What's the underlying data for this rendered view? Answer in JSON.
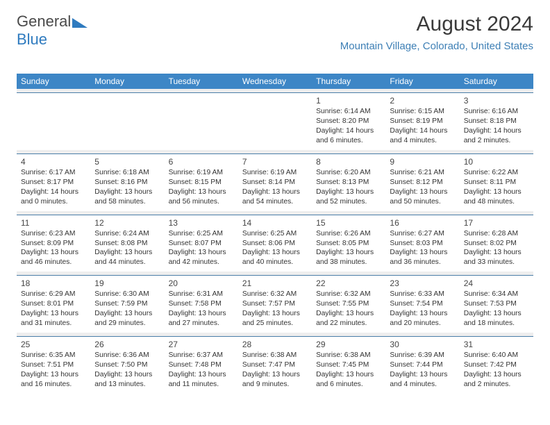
{
  "logo": {
    "text_gray": "General",
    "text_blue": "Blue"
  },
  "header": {
    "title": "August 2024",
    "subtitle": "Mountain Village, Colorado, United States"
  },
  "colors": {
    "header_bar": "#3d86c6",
    "subtitle": "#3d7fb5",
    "week_sep_bg": "#eeeeee",
    "week_sep_border": "#4a7ea8",
    "text": "#333333"
  },
  "typography": {
    "title_fontsize": 30,
    "subtitle_fontsize": 15,
    "weekday_fontsize": 12,
    "daynum_fontsize": 12,
    "body_fontsize": 10.3
  },
  "weekdays": [
    "Sunday",
    "Monday",
    "Tuesday",
    "Wednesday",
    "Thursday",
    "Friday",
    "Saturday"
  ],
  "weeks": [
    [
      null,
      null,
      null,
      null,
      {
        "n": "1",
        "sr": "Sunrise: 6:14 AM",
        "ss": "Sunset: 8:20 PM",
        "d1": "Daylight: 14 hours",
        "d2": "and 6 minutes."
      },
      {
        "n": "2",
        "sr": "Sunrise: 6:15 AM",
        "ss": "Sunset: 8:19 PM",
        "d1": "Daylight: 14 hours",
        "d2": "and 4 minutes."
      },
      {
        "n": "3",
        "sr": "Sunrise: 6:16 AM",
        "ss": "Sunset: 8:18 PM",
        "d1": "Daylight: 14 hours",
        "d2": "and 2 minutes."
      }
    ],
    [
      {
        "n": "4",
        "sr": "Sunrise: 6:17 AM",
        "ss": "Sunset: 8:17 PM",
        "d1": "Daylight: 14 hours",
        "d2": "and 0 minutes."
      },
      {
        "n": "5",
        "sr": "Sunrise: 6:18 AM",
        "ss": "Sunset: 8:16 PM",
        "d1": "Daylight: 13 hours",
        "d2": "and 58 minutes."
      },
      {
        "n": "6",
        "sr": "Sunrise: 6:19 AM",
        "ss": "Sunset: 8:15 PM",
        "d1": "Daylight: 13 hours",
        "d2": "and 56 minutes."
      },
      {
        "n": "7",
        "sr": "Sunrise: 6:19 AM",
        "ss": "Sunset: 8:14 PM",
        "d1": "Daylight: 13 hours",
        "d2": "and 54 minutes."
      },
      {
        "n": "8",
        "sr": "Sunrise: 6:20 AM",
        "ss": "Sunset: 8:13 PM",
        "d1": "Daylight: 13 hours",
        "d2": "and 52 minutes."
      },
      {
        "n": "9",
        "sr": "Sunrise: 6:21 AM",
        "ss": "Sunset: 8:12 PM",
        "d1": "Daylight: 13 hours",
        "d2": "and 50 minutes."
      },
      {
        "n": "10",
        "sr": "Sunrise: 6:22 AM",
        "ss": "Sunset: 8:11 PM",
        "d1": "Daylight: 13 hours",
        "d2": "and 48 minutes."
      }
    ],
    [
      {
        "n": "11",
        "sr": "Sunrise: 6:23 AM",
        "ss": "Sunset: 8:09 PM",
        "d1": "Daylight: 13 hours",
        "d2": "and 46 minutes."
      },
      {
        "n": "12",
        "sr": "Sunrise: 6:24 AM",
        "ss": "Sunset: 8:08 PM",
        "d1": "Daylight: 13 hours",
        "d2": "and 44 minutes."
      },
      {
        "n": "13",
        "sr": "Sunrise: 6:25 AM",
        "ss": "Sunset: 8:07 PM",
        "d1": "Daylight: 13 hours",
        "d2": "and 42 minutes."
      },
      {
        "n": "14",
        "sr": "Sunrise: 6:25 AM",
        "ss": "Sunset: 8:06 PM",
        "d1": "Daylight: 13 hours",
        "d2": "and 40 minutes."
      },
      {
        "n": "15",
        "sr": "Sunrise: 6:26 AM",
        "ss": "Sunset: 8:05 PM",
        "d1": "Daylight: 13 hours",
        "d2": "and 38 minutes."
      },
      {
        "n": "16",
        "sr": "Sunrise: 6:27 AM",
        "ss": "Sunset: 8:03 PM",
        "d1": "Daylight: 13 hours",
        "d2": "and 36 minutes."
      },
      {
        "n": "17",
        "sr": "Sunrise: 6:28 AM",
        "ss": "Sunset: 8:02 PM",
        "d1": "Daylight: 13 hours",
        "d2": "and 33 minutes."
      }
    ],
    [
      {
        "n": "18",
        "sr": "Sunrise: 6:29 AM",
        "ss": "Sunset: 8:01 PM",
        "d1": "Daylight: 13 hours",
        "d2": "and 31 minutes."
      },
      {
        "n": "19",
        "sr": "Sunrise: 6:30 AM",
        "ss": "Sunset: 7:59 PM",
        "d1": "Daylight: 13 hours",
        "d2": "and 29 minutes."
      },
      {
        "n": "20",
        "sr": "Sunrise: 6:31 AM",
        "ss": "Sunset: 7:58 PM",
        "d1": "Daylight: 13 hours",
        "d2": "and 27 minutes."
      },
      {
        "n": "21",
        "sr": "Sunrise: 6:32 AM",
        "ss": "Sunset: 7:57 PM",
        "d1": "Daylight: 13 hours",
        "d2": "and 25 minutes."
      },
      {
        "n": "22",
        "sr": "Sunrise: 6:32 AM",
        "ss": "Sunset: 7:55 PM",
        "d1": "Daylight: 13 hours",
        "d2": "and 22 minutes."
      },
      {
        "n": "23",
        "sr": "Sunrise: 6:33 AM",
        "ss": "Sunset: 7:54 PM",
        "d1": "Daylight: 13 hours",
        "d2": "and 20 minutes."
      },
      {
        "n": "24",
        "sr": "Sunrise: 6:34 AM",
        "ss": "Sunset: 7:53 PM",
        "d1": "Daylight: 13 hours",
        "d2": "and 18 minutes."
      }
    ],
    [
      {
        "n": "25",
        "sr": "Sunrise: 6:35 AM",
        "ss": "Sunset: 7:51 PM",
        "d1": "Daylight: 13 hours",
        "d2": "and 16 minutes."
      },
      {
        "n": "26",
        "sr": "Sunrise: 6:36 AM",
        "ss": "Sunset: 7:50 PM",
        "d1": "Daylight: 13 hours",
        "d2": "and 13 minutes."
      },
      {
        "n": "27",
        "sr": "Sunrise: 6:37 AM",
        "ss": "Sunset: 7:48 PM",
        "d1": "Daylight: 13 hours",
        "d2": "and 11 minutes."
      },
      {
        "n": "28",
        "sr": "Sunrise: 6:38 AM",
        "ss": "Sunset: 7:47 PM",
        "d1": "Daylight: 13 hours",
        "d2": "and 9 minutes."
      },
      {
        "n": "29",
        "sr": "Sunrise: 6:38 AM",
        "ss": "Sunset: 7:45 PM",
        "d1": "Daylight: 13 hours",
        "d2": "and 6 minutes."
      },
      {
        "n": "30",
        "sr": "Sunrise: 6:39 AM",
        "ss": "Sunset: 7:44 PM",
        "d1": "Daylight: 13 hours",
        "d2": "and 4 minutes."
      },
      {
        "n": "31",
        "sr": "Sunrise: 6:40 AM",
        "ss": "Sunset: 7:42 PM",
        "d1": "Daylight: 13 hours",
        "d2": "and 2 minutes."
      }
    ]
  ]
}
